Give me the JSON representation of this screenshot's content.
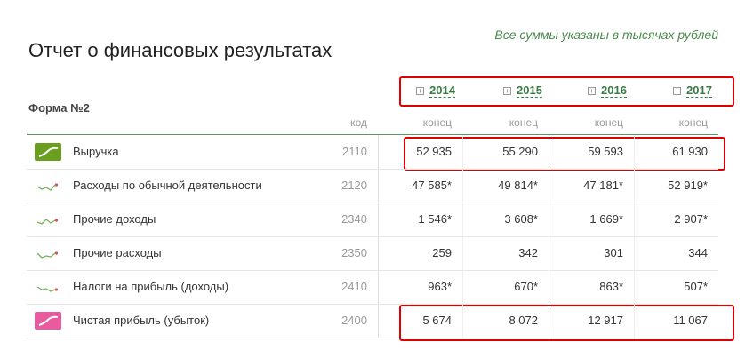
{
  "note": "Все суммы указаны в тысячах рублей",
  "title": "Отчет о финансовых результатах",
  "form_label": "Форма №2",
  "code_header": "код",
  "years": [
    "2014",
    "2015",
    "2016",
    "2017"
  ],
  "period_headers": [
    "конец",
    "конец",
    "конец",
    "конец"
  ],
  "rows": [
    {
      "name": "Выручка",
      "code": "2110",
      "values": [
        "52 935",
        "55 290",
        "59 593",
        "61 930"
      ]
    },
    {
      "name": "Расходы по обычной деятельности",
      "code": "2120",
      "values": [
        "47 585*",
        "49 814*",
        "47 181*",
        "52 919*"
      ]
    },
    {
      "name": "Прочие доходы",
      "code": "2340",
      "values": [
        "1 546*",
        "3 608*",
        "1 669*",
        "2 907*"
      ]
    },
    {
      "name": "Прочие расходы",
      "code": "2350",
      "values": [
        "259",
        "342",
        "301",
        "344"
      ]
    },
    {
      "name": "Налоги на прибыль (доходы)",
      "code": "2410",
      "values": [
        "963*",
        "670*",
        "863*",
        "507*"
      ]
    },
    {
      "name": "Чистая прибыль (убыток)",
      "code": "2400",
      "values": [
        "5 674",
        "8 072",
        "12 917",
        "11 067"
      ]
    }
  ]
}
